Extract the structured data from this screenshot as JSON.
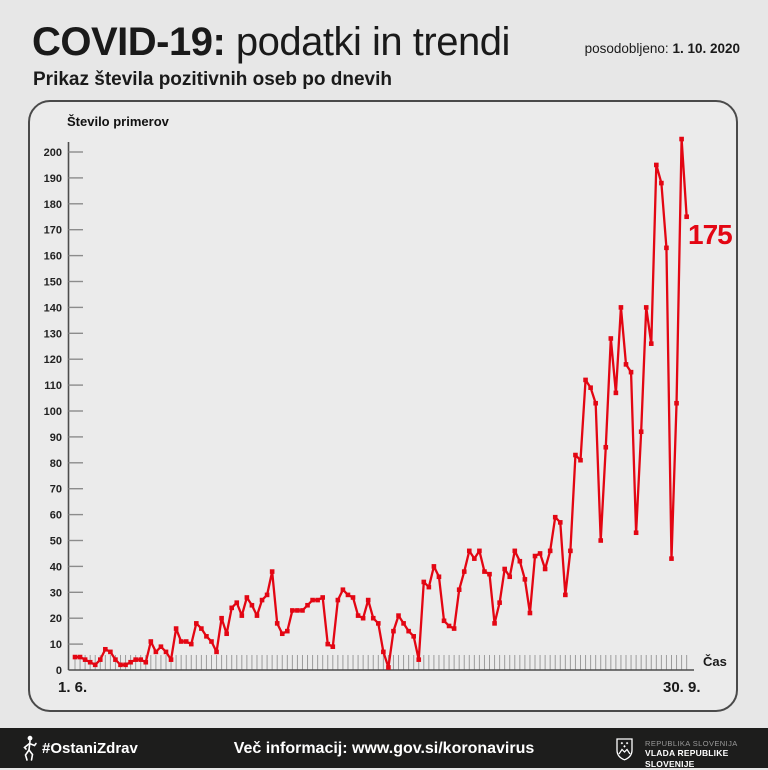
{
  "header": {
    "title_strong": "COVID-19:",
    "title_rest": " podatki in trendi",
    "updated_label": "posodobljeno: ",
    "updated_date": "1. 10. 2020",
    "subtitle": "Prikaz števila pozitivnih oseb po dnevih"
  },
  "chart_data": {
    "type": "line",
    "title": "Število primerov",
    "ylabel": "Število primerov",
    "xlabel": "Čas",
    "x_start_label": "1. 6.",
    "x_end_label": "30. 9.",
    "ylim": [
      0,
      200
    ],
    "y_ticks": [
      0,
      10,
      20,
      30,
      40,
      50,
      60,
      70,
      80,
      90,
      100,
      110,
      120,
      130,
      140,
      150,
      160,
      170,
      180,
      190,
      200
    ],
    "grid": false,
    "line_color": "#e30613",
    "marker": "square",
    "annotation": {
      "text": "175",
      "value": 175,
      "point_index": 121
    },
    "x_points": 122,
    "values": [
      5,
      5,
      4,
      3,
      2,
      4,
      8,
      7,
      4,
      2,
      2,
      3,
      4,
      4,
      3,
      11,
      7,
      9,
      7,
      4,
      16,
      11,
      11,
      10,
      18,
      16,
      13,
      11,
      7,
      20,
      14,
      24,
      26,
      21,
      28,
      25,
      21,
      27,
      29,
      38,
      18,
      14,
      15,
      23,
      23,
      23,
      25,
      27,
      27,
      28,
      10,
      9,
      27,
      31,
      29,
      28,
      21,
      20,
      27,
      20,
      18,
      7,
      1,
      15,
      21,
      18,
      15,
      13,
      4,
      34,
      32,
      40,
      36,
      19,
      17,
      16,
      31,
      38,
      46,
      43,
      46,
      38,
      37,
      18,
      26,
      39,
      36,
      46,
      42,
      35,
      22,
      44,
      45,
      39,
      46,
      59,
      57,
      29,
      46,
      83,
      81,
      112,
      109,
      103,
      50,
      86,
      128,
      107,
      140,
      118,
      115,
      53,
      92,
      140,
      126,
      195,
      188,
      163,
      43,
      103,
      205,
      175
    ]
  },
  "footer": {
    "hashtag": "#OstaniZdrav",
    "info": "Več informacij: www.gov.si/koronavirus",
    "gov_line1": "REPUBLIKA SLOVENIJA",
    "gov_line2": "VLADA REPUBLIKE SLOVENIJE"
  }
}
